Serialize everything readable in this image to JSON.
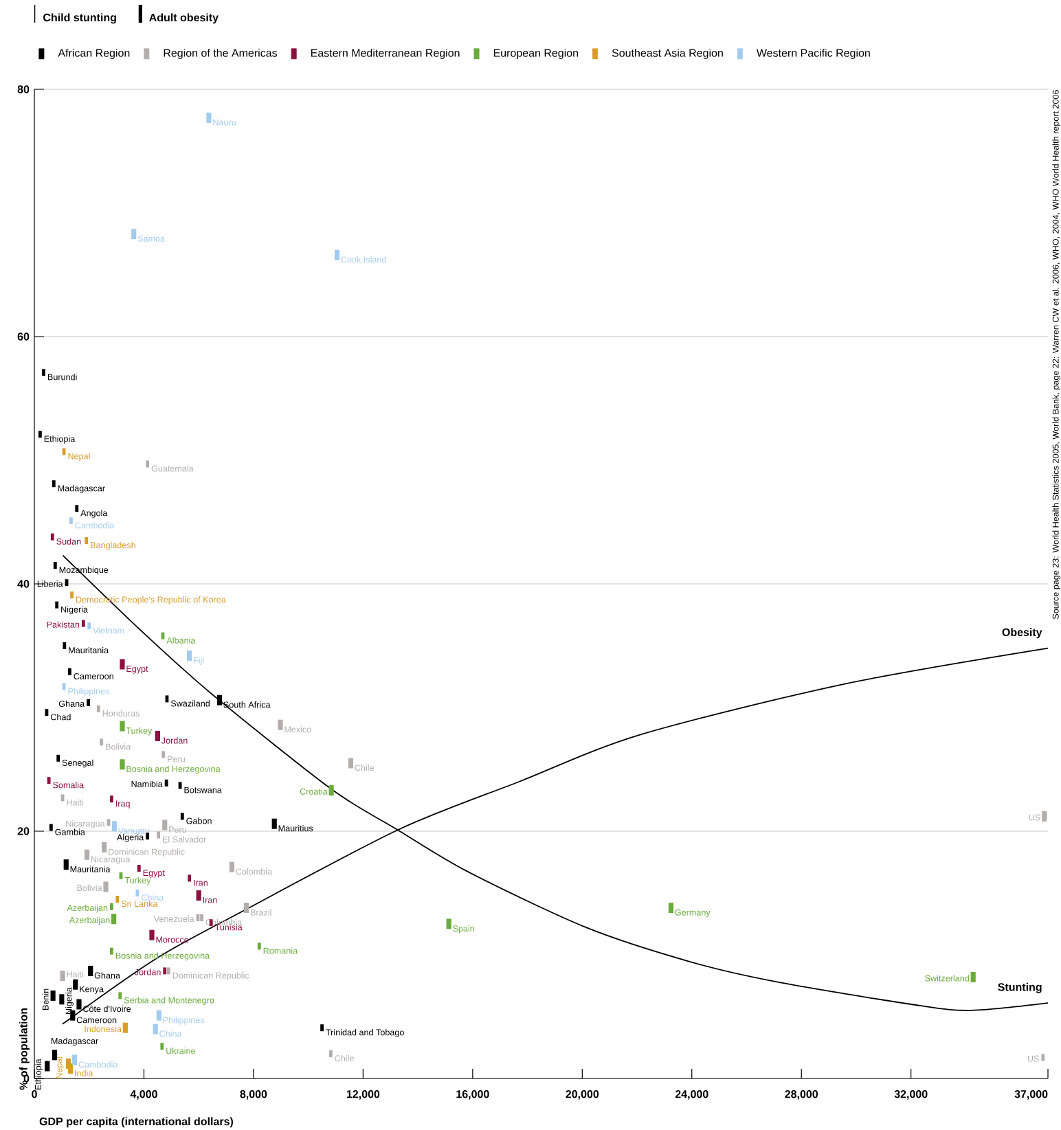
{
  "chart_data": {
    "type": "scatter",
    "xlabel": "GDP per capita (international dollars)",
    "ylabel": "% of population",
    "xlim": [
      0,
      37000
    ],
    "ylim": [
      0,
      80
    ],
    "xticks": [
      0,
      {
        "value": 4000,
        "label": "4,000"
      },
      {
        "value": 8000,
        "label": "8,000"
      },
      {
        "value": 12000,
        "label": "12,000"
      },
      {
        "value": 16000,
        "label": "16,000"
      },
      {
        "value": 20000,
        "label": "20,000"
      },
      {
        "value": 24000,
        "label": "24,000"
      },
      {
        "value": 28000,
        "label": "28,000"
      },
      {
        "value": 32000,
        "label": "32,000"
      },
      {
        "value": 37000,
        "label": "37,000"
      }
    ],
    "yticks": [
      0,
      20,
      40,
      60,
      80
    ],
    "grid": "y",
    "legend": "top",
    "series": [
      {
        "name": "African Region",
        "color": "#000000",
        "x": [
          340,
          210,
          710,
          1550,
          760,
          1180,
          820,
          1100,
          1290,
          1970,
          450,
          4840,
          870,
          4820,
          5320,
          5400,
          610,
          4130,
          10500
        ],
        "values": [
          57.1,
          52.1,
          48.1,
          46.1,
          41.5,
          40.1,
          38.3,
          35.0,
          32.9,
          30.4,
          29.6,
          30.7,
          25.9,
          23.9,
          23.7,
          21.2,
          20.3,
          19.6,
          4.1
        ]
      },
      {
        "name": "Region of the Americas",
        "color": "#b3aeab",
        "x": [
          4130,
          2340,
          2450,
          4710,
          1030,
          2710,
          4530,
          5970,
          6110,
          4900,
          10820,
          36820
        ],
        "values": [
          49.7,
          29.9,
          27.2,
          26.2,
          22.7,
          20.7,
          19.7,
          13.0,
          13.0,
          8.7,
          2.0,
          1.7
        ]
      },
      {
        "name": "Eastern Mediterranean Region",
        "color": "#8c1040",
        "x": [
          660,
          1790,
          530,
          2820,
          3820,
          5660,
          6450,
          4760
        ],
        "values": [
          43.8,
          36.8,
          24.1,
          22.6,
          17.0,
          16.2,
          12.6,
          8.7
        ]
      },
      {
        "name": "European Region",
        "color": "#6aab3a",
        "x": [
          4690,
          3160,
          2820,
          2820,
          8210,
          3130,
          4660
        ],
        "values": [
          35.8,
          16.4,
          13.9,
          10.3,
          10.7,
          6.7,
          2.6
        ]
      },
      {
        "name": "Southeast Asia Region",
        "color": "#d99b2a",
        "x": [
          1080,
          1900,
          1370,
          3030
        ],
        "values": [
          50.7,
          43.5,
          39.1,
          14.5
        ]
      },
      {
        "name": "Western Pacific Region",
        "color": "#a3cbef",
        "x": [
          1340,
          2000,
          1080,
          3760
        ],
        "values": [
          45.1,
          36.6,
          31.7,
          15.0
        ]
      },
      {
        "color": "#000000",
        "x": [
          6760,
          8760,
          1160,
          2050,
          1500,
          680,
          1000,
          1630,
          1400,
          740,
          470
        ],
        "values": [
          30.6,
          20.6,
          17.3,
          8.7,
          7.6,
          6.7,
          6.4,
          6.0,
          5.1,
          1.9,
          1.0
        ]
      },
      {
        "color": "#b3aeab",
        "x": [
          8980,
          11550,
          4760,
          2550,
          1920,
          7210,
          2610,
          7740,
          1030,
          36870
        ],
        "values": [
          28.6,
          25.5,
          20.5,
          18.7,
          18.1,
          17.1,
          15.5,
          13.8,
          8.3,
          21.2
        ]
      },
      {
        "color": "#8c1040",
        "x": [
          3210,
          4500,
          6000,
          4290
        ],
        "values": [
          33.5,
          27.7,
          14.8,
          11.6
        ]
      },
      {
        "color": "#6aab3a",
        "x": [
          3210,
          3210,
          10840,
          2900,
          23240,
          15130,
          34270
        ],
        "values": [
          28.5,
          25.4,
          23.3,
          12.9,
          13.8,
          12.5,
          8.2
        ]
      },
      {
        "color": "#d99b2a",
        "x": [
          3320,
          1240,
          1320
        ],
        "values": [
          4.1,
          1.2,
          0.8
        ]
      },
      {
        "color": "#a3cbef",
        "x": [
          6370,
          3630,
          11050,
          5660,
          2920,
          4550,
          4420,
          1470
        ],
        "values": [
          77.7,
          68.3,
          66.6,
          34.2,
          20.4,
          5.1,
          4.0,
          1.5
        ]
      },
      {
        "name": "Obesity",
        "type": "line",
        "color": "#000000",
        "x": [
          1026,
          4448,
          7580,
          13265,
          17690,
          22109,
          29557,
          37000
        ],
        "values": [
          4.4,
          9.7,
          13.5,
          20.1,
          24.0,
          27.8,
          31.9,
          34.8
        ]
      },
      {
        "name": "Stunting",
        "type": "line",
        "color": "#000000",
        "x": [
          1042,
          4000,
          6527,
          10843,
          13265,
          15845,
          20160,
          24004,
          27135,
          32005,
          34110,
          37000
        ],
        "values": [
          42.3,
          36.0,
          31.0,
          23.4,
          20.1,
          16.7,
          12.2,
          9.4,
          7.8,
          6.0,
          5.5,
          6.1
        ]
      }
    ],
    "annotations": [
      "Child stunting",
      "Adult obesity",
      "Source page 23: World Health Statistics 2005, World Bank, page 22: Warren CW et al. 2006, WHO, 2004, WHO World Health report 2006",
      {
        "text": "Burundi",
        "x": 340,
        "y": 57.1
      },
      {
        "text": "Ethiopia",
        "x": 210,
        "y": 52.1
      },
      {
        "text": "Madagascar",
        "x": 710,
        "y": 48.1
      },
      {
        "text": "Angola",
        "x": 1550,
        "y": 46.1
      },
      {
        "text": "Mozambique",
        "x": 760,
        "y": 41.5
      },
      {
        "text": "Liberia",
        "x": 1180,
        "y": 40.1
      },
      {
        "text": "Nigeria",
        "x": 820,
        "y": 38.3
      },
      {
        "text": "Mauritania",
        "x": 1100,
        "y": 35.0
      },
      {
        "text": "Cameroon",
        "x": 1290,
        "y": 32.9
      },
      {
        "text": "Ghana",
        "x": 1970,
        "y": 30.4
      },
      {
        "text": "Chad",
        "x": 450,
        "y": 29.6
      },
      {
        "text": "Swaziland",
        "x": 4840,
        "y": 30.7
      },
      {
        "text": "Senegal",
        "x": 870,
        "y": 25.9
      },
      {
        "text": "Namibia",
        "x": 4820,
        "y": 23.9
      },
      {
        "text": "Botswana",
        "x": 5320,
        "y": 23.7
      },
      {
        "text": "Gabon",
        "x": 5400,
        "y": 21.2
      },
      {
        "text": "Gambia",
        "x": 610,
        "y": 20.3
      },
      {
        "text": "Algeria",
        "x": 4130,
        "y": 19.6
      },
      {
        "text": "Trinidad and Tobago",
        "x": 10500,
        "y": 4.1
      },
      {
        "text": "Guatemala",
        "x": 4130,
        "y": 49.7
      },
      {
        "text": "Honduras",
        "x": 2340,
        "y": 29.9
      },
      {
        "text": "Bolivia",
        "x": 2450,
        "y": 27.2
      },
      {
        "text": "Peru",
        "x": 4710,
        "y": 26.2
      },
      {
        "text": "Haiti",
        "x": 1030,
        "y": 22.7
      },
      {
        "text": "Nicaragua",
        "x": 2710,
        "y": 20.7
      },
      {
        "text": "El Salvador",
        "x": 4530,
        "y": 19.7
      },
      {
        "text": "Venezuela",
        "x": 5970,
        "y": 13.0
      },
      {
        "text": "Colombia",
        "x": 6110,
        "y": 13.0
      },
      {
        "text": "Dominican Republic",
        "x": 4900,
        "y": 8.7
      },
      {
        "text": "Chile",
        "x": 10820,
        "y": 2.0
      },
      {
        "text": "US",
        "x": 36820,
        "y": 1.7
      },
      {
        "text": "Sudan",
        "x": 660,
        "y": 43.8
      },
      {
        "text": "Pakistan",
        "x": 1790,
        "y": 36.8
      },
      {
        "text": "Somalia",
        "x": 530,
        "y": 24.1
      },
      {
        "text": "Iraq",
        "x": 2820,
        "y": 22.6
      },
      {
        "text": "Egypt",
        "x": 3820,
        "y": 17.0
      },
      {
        "text": "Iran",
        "x": 5660,
        "y": 16.2
      },
      {
        "text": "Tunisia",
        "x": 6450,
        "y": 12.6
      },
      {
        "text": "Jordan",
        "x": 4760,
        "y": 8.7
      },
      {
        "text": "Albania",
        "x": 4690,
        "y": 35.8
      },
      {
        "text": "Turkey",
        "x": 3160,
        "y": 16.4
      },
      {
        "text": "Azerbaijan",
        "x": 2820,
        "y": 13.9
      },
      {
        "text": "Bosnia and Herzegovina",
        "x": 2820,
        "y": 10.3
      },
      {
        "text": "Romania",
        "x": 8210,
        "y": 10.7
      },
      {
        "text": "Serbia and Montenegro",
        "x": 3130,
        "y": 6.7
      },
      {
        "text": "Ukraine",
        "x": 4660,
        "y": 2.6
      },
      {
        "text": "Nepal",
        "x": 1080,
        "y": 50.7
      },
      {
        "text": "Bangladesh",
        "x": 1900,
        "y": 43.5
      },
      {
        "text": "Democratic People's Republic of Korea",
        "x": 1370,
        "y": 39.1
      },
      {
        "text": "Sri Lanka",
        "x": 3030,
        "y": 14.5
      },
      {
        "text": "Cambodia",
        "x": 1340,
        "y": 45.1
      },
      {
        "text": "Vietnam",
        "x": 2000,
        "y": 36.6
      },
      {
        "text": "Philippines",
        "x": 1080,
        "y": 31.7
      },
      {
        "text": "China",
        "x": 3760,
        "y": 15.0
      },
      {
        "text": "South Africa",
        "x": 6760,
        "y": 30.6
      },
      {
        "text": "Mauritius",
        "x": 8760,
        "y": 20.6
      },
      {
        "text": "Mauritania",
        "x": 1160,
        "y": 17.3
      },
      {
        "text": "Ghana",
        "x": 2050,
        "y": 8.7
      },
      {
        "text": "Kenya",
        "x": 1500,
        "y": 7.6
      },
      {
        "text": "Benin",
        "x": 680,
        "y": 6.7
      },
      {
        "text": "Nigeria",
        "x": 1000,
        "y": 6.4
      },
      {
        "text": "Côte d'Ivoire",
        "x": 1630,
        "y": 6.0
      },
      {
        "text": "Cameroon",
        "x": 1400,
        "y": 5.1
      },
      {
        "text": "Madagascar",
        "x": 740,
        "y": 1.9
      },
      {
        "text": "Ethiopia",
        "x": 470,
        "y": 1.0
      },
      {
        "text": "Mexico",
        "x": 8980,
        "y": 28.6
      },
      {
        "text": "Chile",
        "x": 11550,
        "y": 25.5
      },
      {
        "text": "Peru",
        "x": 4760,
        "y": 20.5
      },
      {
        "text": "Dominican Republic",
        "x": 2550,
        "y": 18.7
      },
      {
        "text": "Nicaragua",
        "x": 1920,
        "y": 18.1
      },
      {
        "text": "Colombia",
        "x": 7210,
        "y": 17.1
      },
      {
        "text": "Bolivia",
        "x": 2610,
        "y": 15.5
      },
      {
        "text": "Brazil",
        "x": 7740,
        "y": 13.8
      },
      {
        "text": "Haiti",
        "x": 1030,
        "y": 8.3
      },
      {
        "text": "US",
        "x": 36870,
        "y": 21.2
      },
      {
        "text": "Egypt",
        "x": 3210,
        "y": 33.5
      },
      {
        "text": "Jordan",
        "x": 4500,
        "y": 27.7
      },
      {
        "text": "Iran",
        "x": 6000,
        "y": 14.8
      },
      {
        "text": "Morocco",
        "x": 4290,
        "y": 11.6
      },
      {
        "text": "Turkey",
        "x": 3210,
        "y": 28.5
      },
      {
        "text": "Bosnia and Herzegovina",
        "x": 3210,
        "y": 25.4
      },
      {
        "text": "Croatia",
        "x": 10840,
        "y": 23.3
      },
      {
        "text": "Azerbaijan",
        "x": 2900,
        "y": 12.9
      },
      {
        "text": "Germany",
        "x": 23240,
        "y": 13.8
      },
      {
        "text": "Spain",
        "x": 15130,
        "y": 12.5
      },
      {
        "text": "Switzerland",
        "x": 34270,
        "y": 8.2
      },
      {
        "text": "Indonesia",
        "x": 3320,
        "y": 4.1
      },
      {
        "text": "Nepal",
        "x": 1240,
        "y": 1.2
      },
      {
        "text": "India",
        "x": 1320,
        "y": 0.8
      },
      {
        "text": "Nauru",
        "x": 6370,
        "y": 77.7
      },
      {
        "text": "Samoa",
        "x": 3630,
        "y": 68.3
      },
      {
        "text": "Cook Island",
        "x": 11050,
        "y": 66.6
      },
      {
        "text": "Fiji",
        "x": 5660,
        "y": 34.2
      },
      {
        "text": "Vanuatu",
        "x": 2920,
        "y": 20.4
      },
      {
        "text": "Philippines",
        "x": 4550,
        "y": 5.1
      },
      {
        "text": "China",
        "x": 4420,
        "y": 4.0
      },
      {
        "text": "Cambodia",
        "x": 1470,
        "y": 1.5
      }
    ]
  }
}
